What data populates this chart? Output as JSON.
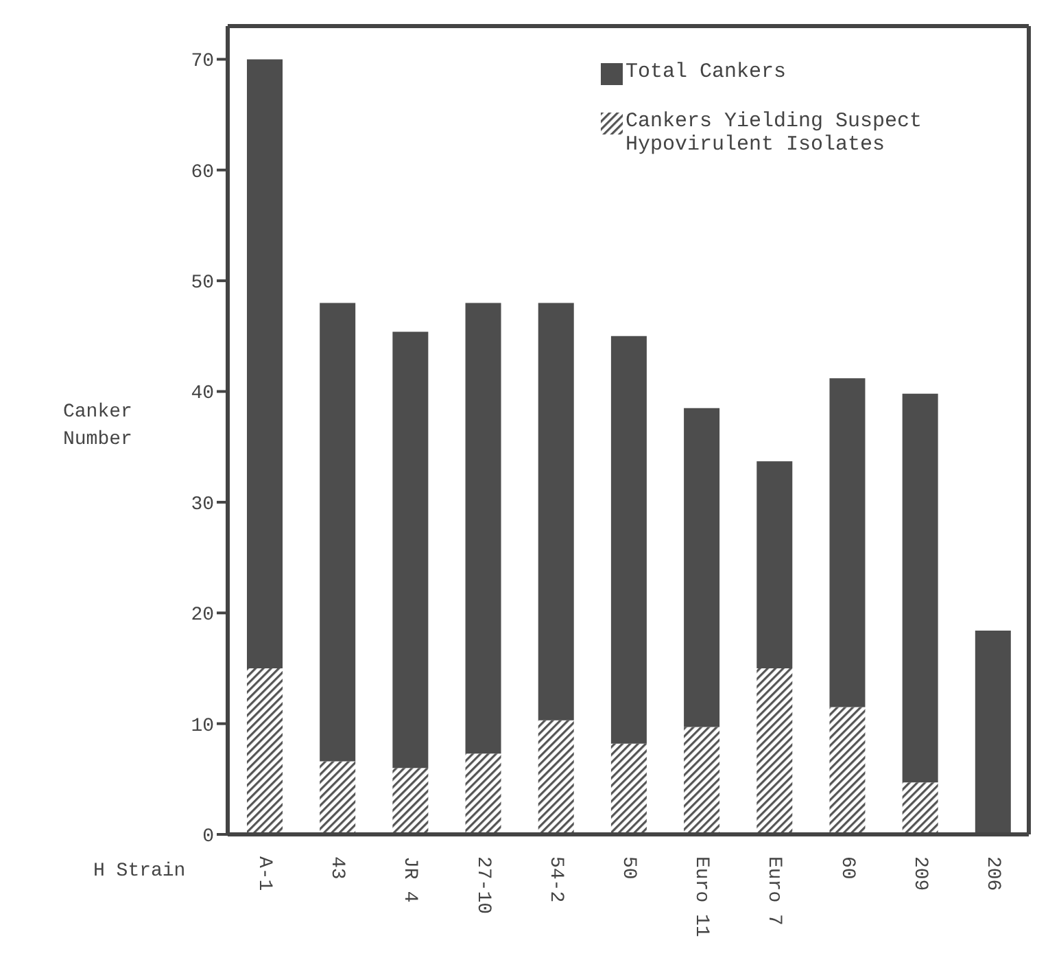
{
  "chart_data": {
    "type": "bar",
    "stacked": true,
    "xlabel": "H Strain",
    "ylabel": "Canker Number",
    "categories": [
      "A-1",
      "43",
      "JR 4",
      "27-10",
      "54-2",
      "50",
      "Euro 11",
      "Euro 7",
      "60",
      "209",
      "206"
    ],
    "series": [
      {
        "name": "Cankers Yielding Suspect Hypovirulent Isolates",
        "color": "#555555",
        "values": [
          15,
          6.6,
          6,
          7.3,
          10.3,
          8.2,
          9.7,
          15,
          11.5,
          4.7,
          0
        ]
      },
      {
        "name": "Total Cankers",
        "color": "#4d4d4d",
        "values": [
          55,
          41.4,
          39.4,
          40.7,
          37.7,
          36.8,
          28.8,
          18.7,
          29.7,
          35.1,
          18.4
        ]
      }
    ],
    "ylim": [
      0,
      73
    ],
    "yticks": [
      0,
      10,
      20,
      30,
      40,
      50,
      60,
      70
    ],
    "legend": "top right",
    "grid": false
  }
}
